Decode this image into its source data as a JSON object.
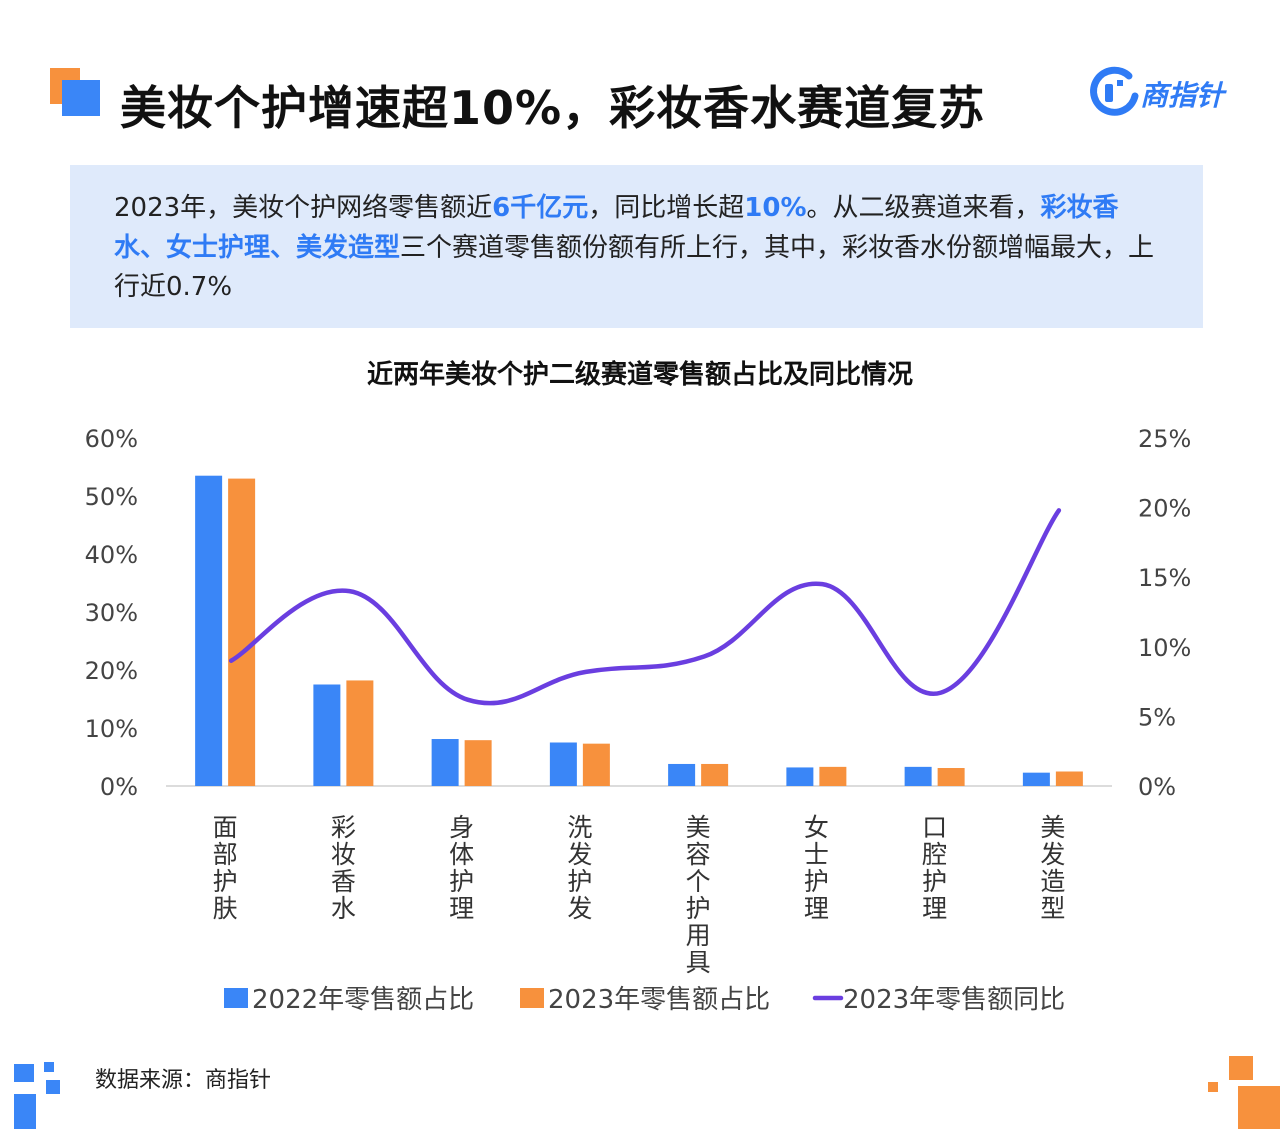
{
  "header": {
    "title": "美妆个护增速超10%，彩妆香水赛道复苏",
    "logo_text": "商指针",
    "accent_blue": "#2f7bf5",
    "accent_orange": "#f7913d"
  },
  "summary": {
    "p1": "2023年，美妆个护网络零售额近",
    "h1": "6千亿元",
    "p2": "，同比增长超",
    "h2": "10%",
    "p3": "。从二级赛道来看，",
    "h3": "彩妆香水、女士护理、美发造型",
    "p4": "三个赛道零售额份额有所上行，其中，彩妆香水份额增幅最大，上行近0.7%"
  },
  "chart_title": "近两年美妆个护二级赛道零售额占比及同比情况",
  "chart_data": {
    "type": "bar",
    "categories": [
      "面部护肤",
      "彩妆香水",
      "身体护理",
      "洗发护发",
      "美容个护用具",
      "女士护理",
      "口腔护理",
      "美发造型"
    ],
    "series": [
      {
        "name": "2022年零售额占比",
        "type": "bar",
        "axis": "left",
        "color": "#3a86f7",
        "values": [
          53.5,
          17.5,
          8.1,
          7.5,
          3.8,
          3.2,
          3.3,
          2.3
        ]
      },
      {
        "name": "2023年零售额占比",
        "type": "bar",
        "axis": "left",
        "color": "#f7913d",
        "values": [
          53.0,
          18.2,
          7.9,
          7.3,
          3.8,
          3.3,
          3.1,
          2.5
        ]
      },
      {
        "name": "2023年零售额同比",
        "type": "line",
        "smooth": true,
        "axis": "right",
        "color": "#6a3ee0",
        "values": [
          9.0,
          14.0,
          6.2,
          8.2,
          9.3,
          14.5,
          6.7,
          19.8
        ]
      }
    ],
    "y_left": {
      "ticks": [
        "0%",
        "10%",
        "20%",
        "30%",
        "40%",
        "50%",
        "60%"
      ],
      "ylim": [
        0,
        60
      ]
    },
    "y_right": {
      "ticks": [
        "0%",
        "5%",
        "10%",
        "15%",
        "20%",
        "25%"
      ],
      "ylim": [
        0,
        25
      ]
    },
    "legend_position": "bottom"
  },
  "footer": {
    "source": "数据来源：商指针"
  }
}
